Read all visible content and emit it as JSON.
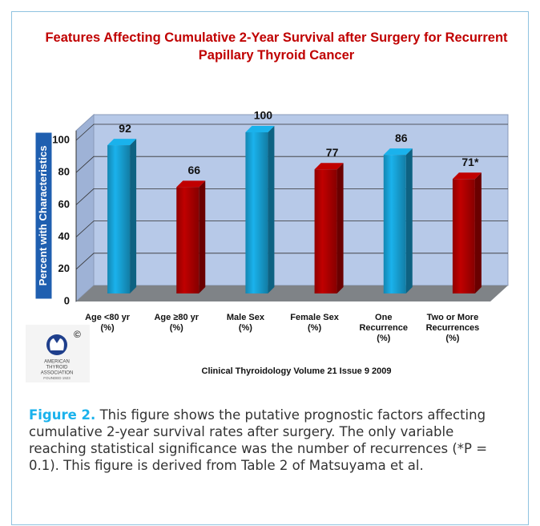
{
  "chart_data": {
    "type": "bar",
    "title": "Features Affecting Cumulative 2-Year Survival after Surgery for Recurrent Papillary Thyroid Cancer",
    "y_label": "Percent with Characteristics",
    "categories": [
      "Age <80 yr\n(%)",
      "Age ≥80 yr\n(%)",
      "Male Sex\n(%)",
      "Female Sex\n(%)",
      "One\nRecurrence\n(%)",
      "Two or More\nRecurrences\n(%)"
    ],
    "values": [
      92,
      66,
      100,
      77,
      86,
      71
    ],
    "value_labels": [
      "92",
      "66",
      "100",
      "77",
      "86",
      "71*"
    ],
    "colors": [
      "#1ab2ec",
      "#c00000",
      "#1ab2ec",
      "#c00000",
      "#1ab2ec",
      "#c00000"
    ],
    "ylim": [
      0,
      100
    ],
    "yticks": [
      0,
      20,
      40,
      60,
      80,
      100
    ],
    "grid": true,
    "source": "Clinical Thyroidology Volume 21 Issue 9 2009"
  },
  "logo": {
    "mark": "©",
    "lines": [
      "AMERICAN",
      "THYROID",
      "ASSOCIATION"
    ],
    "founded": "FOUNDED 1923"
  },
  "caption": {
    "label": "Figure 2.",
    "text": "This figure shows the putative prognostic factors affecting cumulative 2-year survival rates after surgery. The only variable reaching statistical significance was the number of recurrences (*P = 0.1). This figure is derived from Table 2 of Matsuyama et al."
  }
}
